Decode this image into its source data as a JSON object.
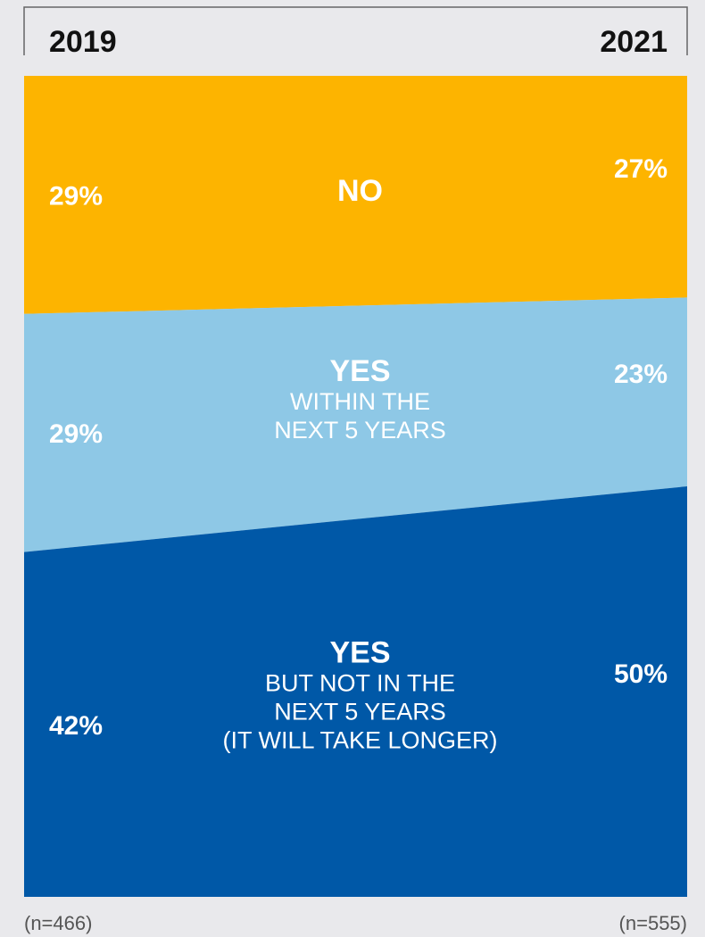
{
  "chart_data": {
    "type": "area",
    "categories": [
      "2019",
      "2021"
    ],
    "sample_sizes": [
      "(n=466)",
      "(n=555)"
    ],
    "ylim": [
      0,
      100
    ],
    "series": [
      {
        "name": "NO",
        "values": [
          29,
          27
        ],
        "value_labels": [
          "29%",
          "27%"
        ],
        "label_main": "NO",
        "label_sub": [],
        "color": "#fdb400"
      },
      {
        "name": "YES WITHIN THE NEXT 5 YEARS",
        "values": [
          29,
          23
        ],
        "value_labels": [
          "29%",
          "23%"
        ],
        "label_main": "YES",
        "label_sub": [
          "WITHIN THE",
          "NEXT 5 YEARS"
        ],
        "color": "#8ec8e6"
      },
      {
        "name": "YES BUT NOT IN THE NEXT 5 YEARS (IT WILL TAKE LONGER)",
        "values": [
          42,
          50
        ],
        "value_labels": [
          "42%",
          "50%"
        ],
        "label_main": "YES",
        "label_sub": [
          "BUT NOT IN THE",
          "NEXT 5 YEARS",
          "(IT WILL TAKE LONGER)"
        ],
        "color": "#0058a7"
      }
    ]
  }
}
